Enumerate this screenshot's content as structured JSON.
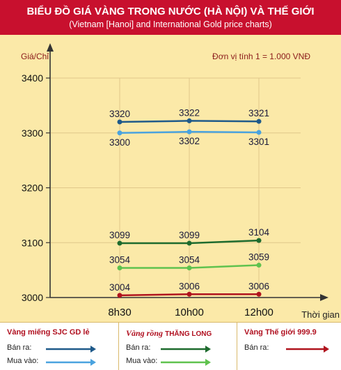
{
  "header": {
    "title": "BIỂU ĐỒ GIÁ VÀNG TRONG NƯỚC (HÀ NỘI) VÀ THẾ GIỚI",
    "subtitle": "(Vietnam [Hanoi] and International Gold price charts)"
  },
  "chart_data": {
    "type": "line",
    "ylabel": "Giá/Chỉ",
    "unit_note": "Đơn vị tính 1 = 1.000 VNĐ",
    "xlabel": "Thời gian",
    "categories": [
      "8h30",
      "10h00",
      "12h00"
    ],
    "ylim": [
      3000,
      3400
    ],
    "yticks": [
      3000,
      3100,
      3200,
      3300,
      3400
    ],
    "grid": true,
    "series": [
      {
        "key": "sjc_sell",
        "values": [
          3320,
          3322,
          3321
        ],
        "color": "#1f5a8a",
        "label_pos": "above"
      },
      {
        "key": "sjc_buy",
        "values": [
          3300,
          3302,
          3301
        ],
        "color": "#4aa3df",
        "label_pos": "below"
      },
      {
        "key": "tl_sell",
        "values": [
          3099,
          3099,
          3104
        ],
        "color": "#1e6b2e",
        "label_pos": "above"
      },
      {
        "key": "tl_buy",
        "values": [
          3054,
          3054,
          3059
        ],
        "color": "#5fc24e",
        "label_pos": "above"
      },
      {
        "key": "world_sell",
        "values": [
          3004,
          3006,
          3006
        ],
        "color": "#b0141e",
        "label_pos": "above"
      }
    ]
  },
  "legend": {
    "sjc": {
      "title": "Vàng miếng SJC GD lẻ",
      "sell": "Bán ra:",
      "buy": "Mua vào:",
      "sell_color": "#1f5a8a",
      "buy_color": "#4aa3df"
    },
    "thanglong": {
      "title_a": "Vàng rồng",
      "title_b": "THĂNG LONG",
      "sell": "Bán ra:",
      "buy": "Mua vào:",
      "sell_color": "#1e6b2e",
      "buy_color": "#5fc24e"
    },
    "world": {
      "title": "Vàng Thế giới 999.9",
      "sell": "Bán ra:",
      "sell_color": "#b0141e"
    }
  }
}
